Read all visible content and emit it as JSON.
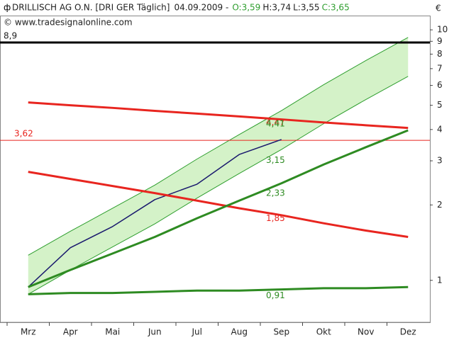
{
  "chart_data": {
    "type": "line",
    "title": "DRILLISCH AG O.N. [DRI GER  Täglich]",
    "date": "04.09.2009 -",
    "quote": [
      {
        "text": "O:3,59",
        "color": "#2e9e2e"
      },
      {
        "text": "H:3,74",
        "color": "#222222"
      },
      {
        "text": "L:3,55",
        "color": "#222222"
      },
      {
        "text": "C:3,65",
        "color": "#2e9e2e"
      }
    ],
    "copyright": "© www.tradesignalonline.com",
    "currency": "€",
    "log_scale": true,
    "categories": [
      "Mrz",
      "Apr",
      "Mai",
      "Jun",
      "Jul",
      "Aug",
      "Sep",
      "Okt",
      "Nov",
      "Dez"
    ],
    "ylim": [
      0.68,
      11.4
    ],
    "yticks": [
      1,
      2,
      3,
      4,
      5,
      6,
      7,
      8,
      9,
      10
    ],
    "channel": {
      "color": "#d4f2c8",
      "line_color": "#2e9e2e",
      "upper": [
        1.26,
        1.57,
        1.94,
        2.4,
        3.05,
        3.82,
        4.76,
        6.04,
        7.54,
        9.33
      ],
      "lower": [
        0.88,
        1.1,
        1.36,
        1.68,
        2.13,
        2.67,
        3.33,
        4.22,
        5.27,
        6.52
      ]
    },
    "series": [
      {
        "color": "#1a1a6e",
        "width": 1.5,
        "values": [
          0.94,
          1.35,
          1.64,
          2.1,
          2.42,
          3.18,
          3.65,
          null,
          null,
          null
        ]
      },
      {
        "color": "#e8251f",
        "width": 3,
        "values": [
          5.13,
          5.0,
          4.88,
          4.75,
          4.63,
          4.51,
          4.39,
          4.27,
          4.16,
          4.06
        ]
      },
      {
        "color": "#e8251f",
        "width": 3,
        "values": [
          2.71,
          2.54,
          2.38,
          2.23,
          2.08,
          1.94,
          1.82,
          1.69,
          1.58,
          1.49
        ]
      },
      {
        "color": "#2e8b22",
        "width": 3,
        "values": [
          0.94,
          1.1,
          1.28,
          1.49,
          1.77,
          2.08,
          2.44,
          2.9,
          3.4,
          3.97
        ]
      },
      {
        "color": "#2e8b22",
        "width": 3,
        "values": [
          0.88,
          0.89,
          0.89,
          0.9,
          0.91,
          0.91,
          0.92,
          0.93,
          0.93,
          0.94
        ]
      }
    ],
    "hlines": [
      {
        "value": 8.9,
        "label": "8,9",
        "color": "#000000",
        "width": 3
      },
      {
        "value": 3.62,
        "label": "3,62",
        "color": "#e8251f",
        "width": 1
      }
    ],
    "annotations": [
      {
        "value": 4.47,
        "label": "4,47",
        "color": "#e8251f"
      },
      {
        "value": 4.41,
        "label": "4,41",
        "color": "#2e8b22"
      },
      {
        "value": 3.15,
        "label": "3,15",
        "color": "#2e8b22"
      },
      {
        "value": 2.33,
        "label": "2,33",
        "color": "#2e8b22"
      },
      {
        "value": 1.85,
        "label": "1,85",
        "color": "#e8251f"
      },
      {
        "value": 0.91,
        "label": "0,91",
        "color": "#2e8b22"
      }
    ]
  }
}
